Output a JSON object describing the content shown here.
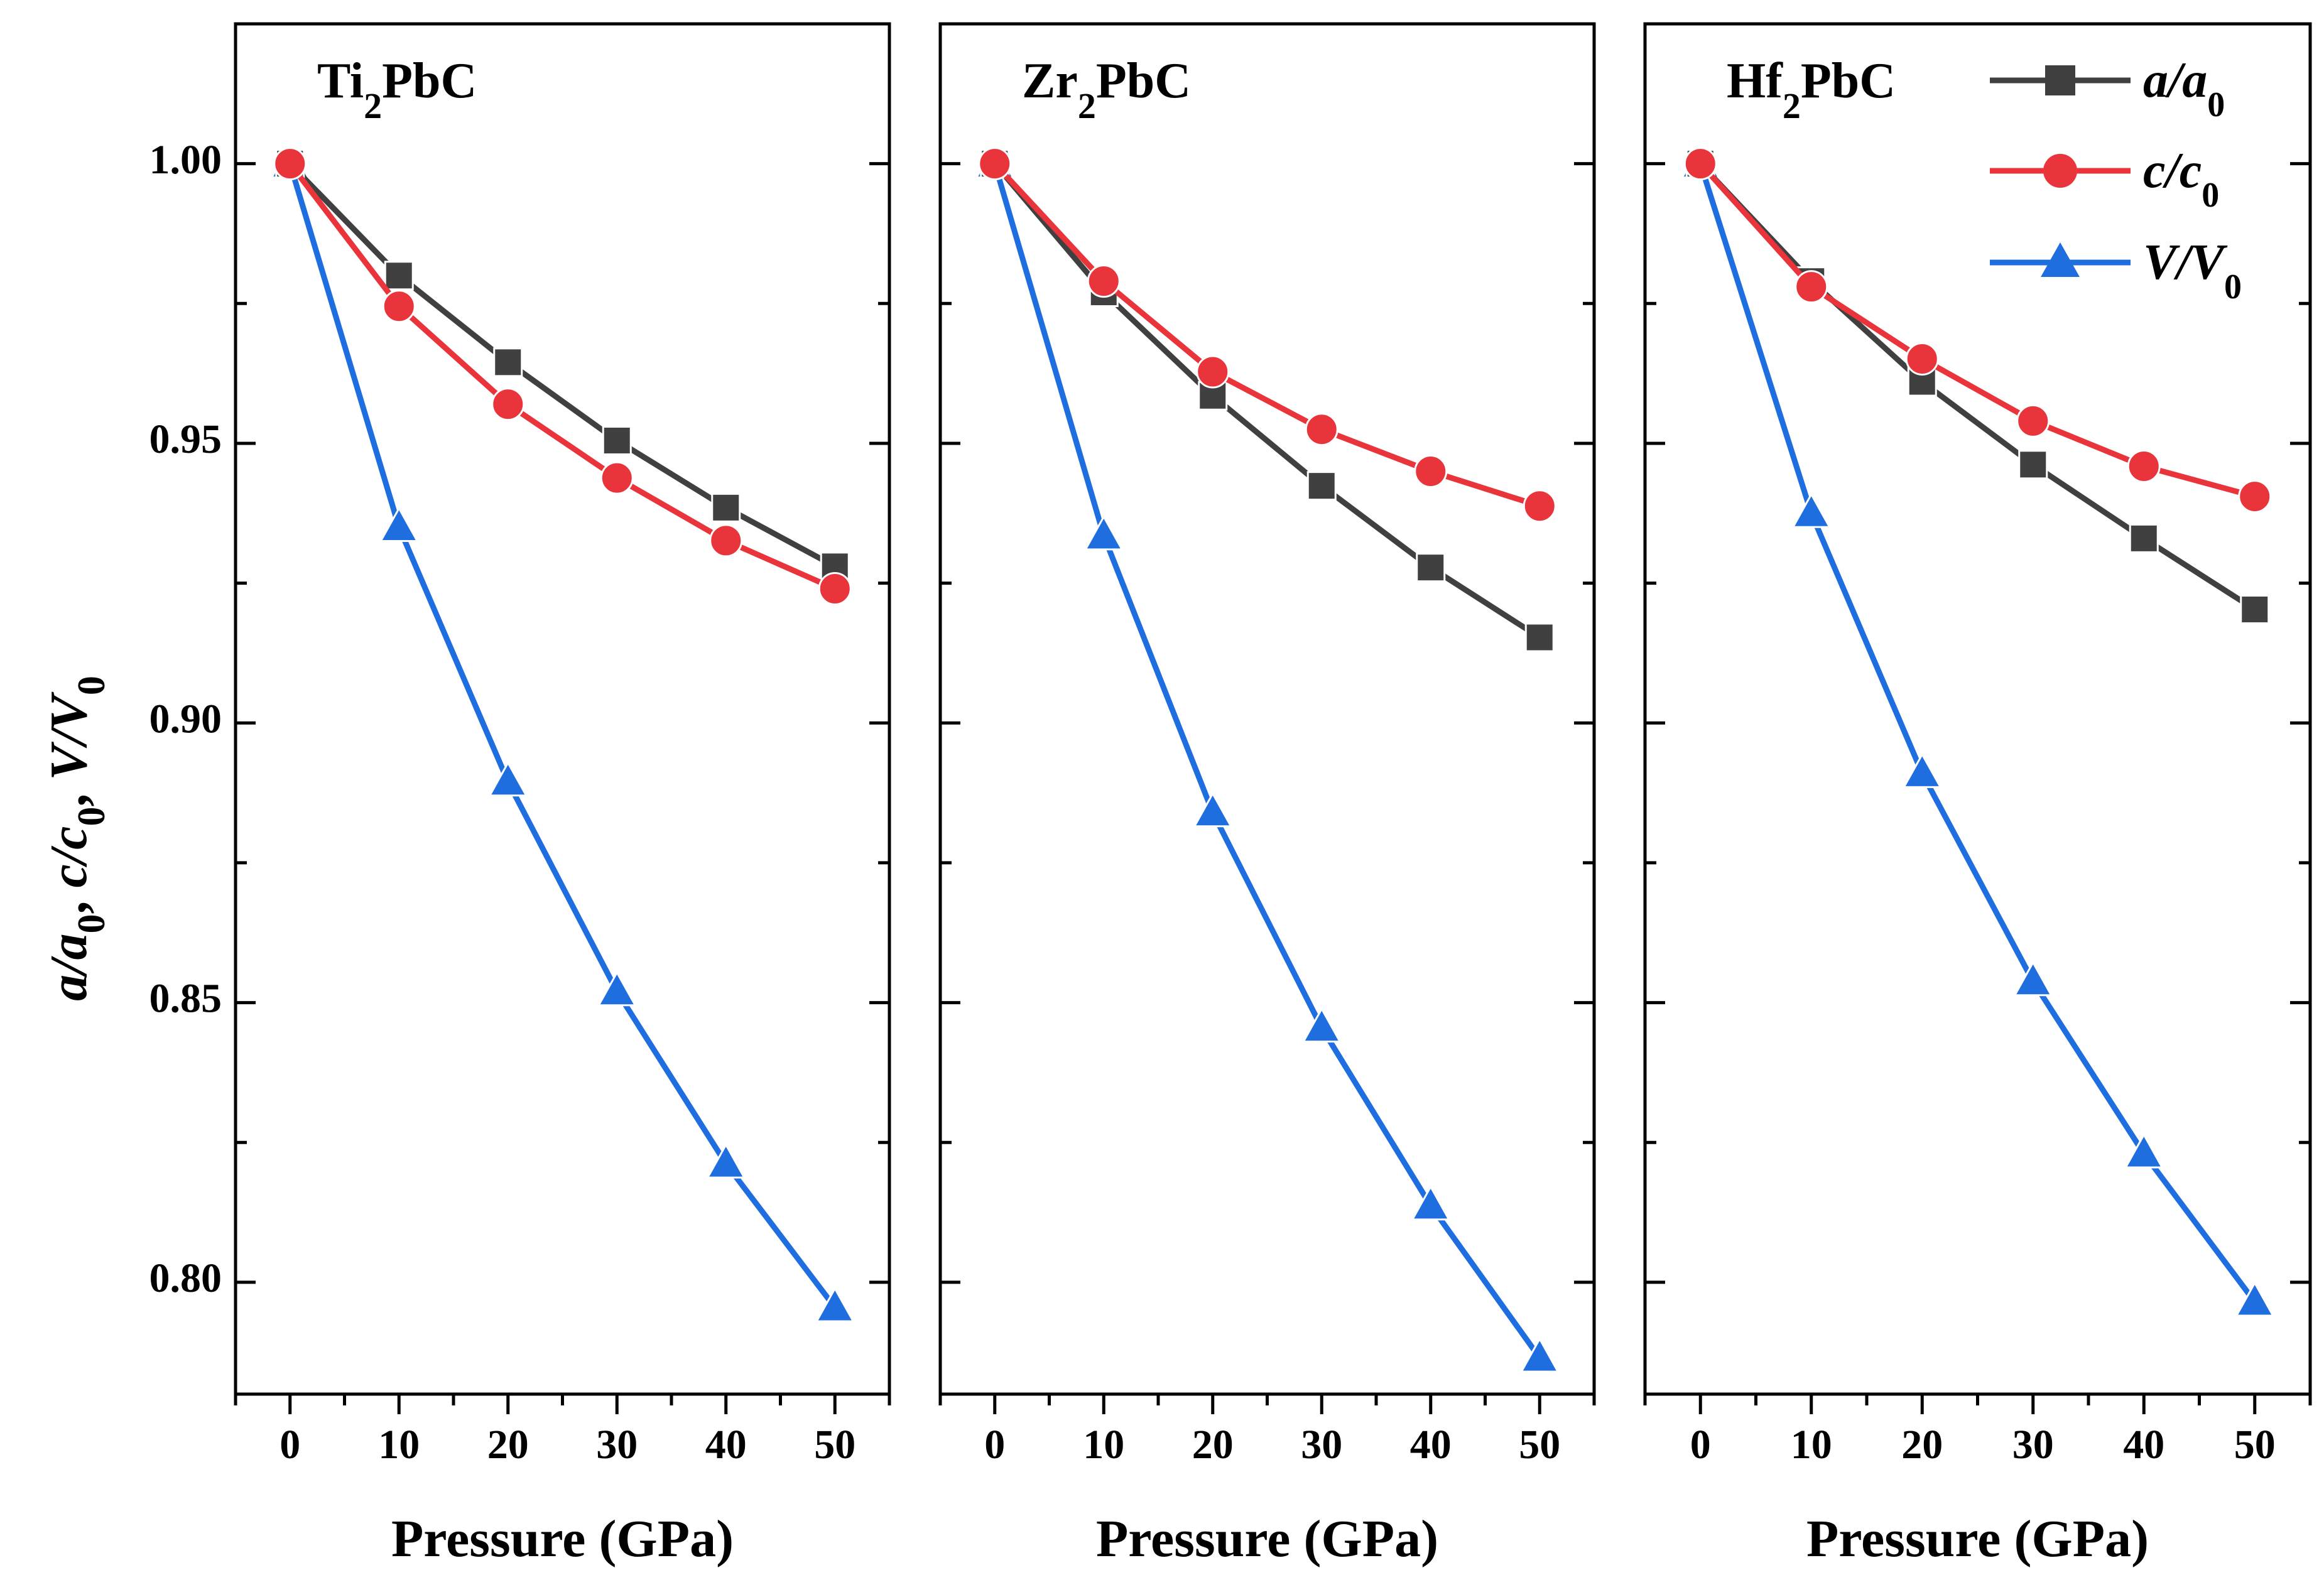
{
  "chart_data": {
    "type": "line",
    "ylabel": "a/a0, c/c0, V/V0",
    "ylim": [
      0.78,
      1.025
    ],
    "yticks": [
      "0.80",
      "0.85",
      "0.90",
      "0.95",
      "1.00"
    ],
    "xlim": [
      -5,
      55
    ],
    "xticks": [
      "0",
      "10",
      "20",
      "30",
      "40",
      "50"
    ],
    "legend": {
      "position": "top-right",
      "entries": [
        {
          "id": "a",
          "label": "a/a",
          "sub": "0"
        },
        {
          "id": "c",
          "label": "c/c",
          "sub": "0"
        },
        {
          "id": "V",
          "label": "V/V",
          "sub": "0"
        }
      ]
    },
    "colors": {
      "a": "#404040",
      "c": "#e8343a",
      "V": "#1e6ee0"
    },
    "panels": [
      {
        "title": "Ti",
        "title_sub": "2",
        "title_rest": "PbC",
        "xlabel": "Pressure (GPa)",
        "x": [
          0,
          10,
          20,
          30,
          40,
          50
        ],
        "series": [
          {
            "id": "a",
            "values": [
              1.0,
              0.98,
              0.9645,
              0.9505,
              0.9385,
              0.928
            ]
          },
          {
            "id": "c",
            "values": [
              1.0,
              0.9745,
              0.957,
              0.9438,
              0.9326,
              0.924
            ]
          },
          {
            "id": "V",
            "values": [
              1.0,
              0.935,
              0.8895,
              0.852,
              0.8212,
              0.7955
            ]
          }
        ]
      },
      {
        "title": "Zr",
        "title_sub": "2",
        "title_rest": "PbC",
        "xlabel": "Pressure (GPa)",
        "x": [
          0,
          10,
          20,
          30,
          40,
          50
        ],
        "series": [
          {
            "id": "a",
            "values": [
              1.0,
              0.977,
              0.9585,
              0.9424,
              0.9278,
              0.9153
            ]
          },
          {
            "id": "c",
            "values": [
              1.0,
              0.979,
              0.9628,
              0.9525,
              0.945,
              0.9388
            ]
          },
          {
            "id": "V",
            "values": [
              1.0,
              0.9335,
              0.884,
              0.8455,
              0.8137,
              0.7865
            ]
          }
        ]
      },
      {
        "title": "Hf",
        "title_sub": "2",
        "title_rest": "PbC",
        "xlabel": "Pressure (GPa)",
        "x": [
          0,
          10,
          20,
          30,
          40,
          50
        ],
        "series": [
          {
            "id": "a",
            "values": [
              1.0,
              0.979,
              0.961,
              0.9462,
              0.933,
              0.9203
            ]
          },
          {
            "id": "c",
            "values": [
              1.0,
              0.978,
              0.9651,
              0.954,
              0.9459,
              0.9405
            ]
          },
          {
            "id": "V",
            "values": [
              1.0,
              0.9375,
              0.891,
              0.8538,
              0.823,
              0.7965
            ]
          }
        ]
      }
    ]
  }
}
